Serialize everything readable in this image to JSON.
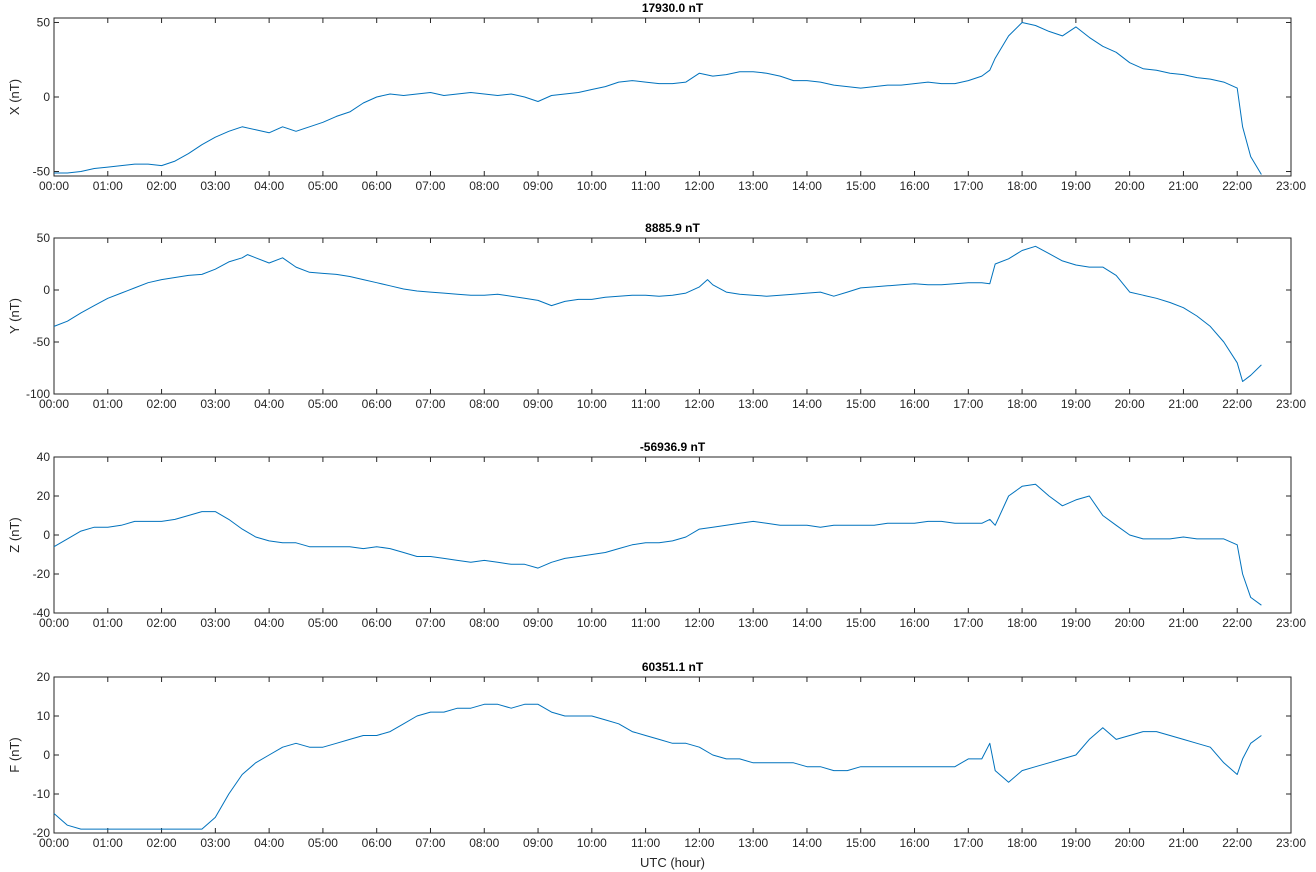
{
  "colors": {
    "series": "#0072bd",
    "axes": "#262626",
    "background": "#ffffff"
  },
  "shared_x": {
    "label": "UTC (hour)",
    "range": [
      0,
      23
    ],
    "tick_labels": [
      "00:00",
      "01:00",
      "02:00",
      "03:00",
      "04:00",
      "05:00",
      "06:00",
      "07:00",
      "08:00",
      "09:00",
      "10:00",
      "11:00",
      "12:00",
      "13:00",
      "14:00",
      "15:00",
      "16:00",
      "17:00",
      "18:00",
      "19:00",
      "20:00",
      "21:00",
      "22:00",
      "23:00"
    ]
  },
  "chart_data": [
    {
      "type": "line",
      "title": "17930.0 nT",
      "ylabel": "X (nT)",
      "xlabel": "",
      "xlim": [
        0,
        23
      ],
      "ylim": [
        -53,
        53
      ],
      "yticks": [
        -50,
        0,
        50
      ],
      "grid": false,
      "series": [
        {
          "x": [
            0,
            0.25,
            0.5,
            0.75,
            1,
            1.25,
            1.5,
            1.75,
            2,
            2.25,
            2.5,
            2.75,
            3,
            3.25,
            3.5,
            3.75,
            4,
            4.25,
            4.5,
            4.75,
            5,
            5.25,
            5.5,
            5.75,
            6,
            6.25,
            6.5,
            6.75,
            7,
            7.25,
            7.5,
            7.75,
            8,
            8.25,
            8.5,
            8.75,
            9,
            9.25,
            9.5,
            9.75,
            10,
            10.25,
            10.5,
            10.75,
            11,
            11.25,
            11.5,
            11.75,
            12,
            12.25,
            12.5,
            12.75,
            13,
            13.25,
            13.5,
            13.75,
            14,
            14.25,
            14.5,
            14.75,
            15,
            15.25,
            15.5,
            15.75,
            16,
            16.25,
            16.5,
            16.75,
            17,
            17.25,
            17.4,
            17.5,
            17.75,
            18,
            18.25,
            18.5,
            18.75,
            19,
            19.25,
            19.5,
            19.75,
            20,
            20.25,
            20.5,
            20.75,
            21,
            21.25,
            21.5,
            21.75,
            22,
            22.1,
            22.25,
            22.45
          ],
          "y": [
            -51,
            -51,
            -50,
            -48,
            -47,
            -46,
            -45,
            -45,
            -46,
            -43,
            -38,
            -32,
            -27,
            -23,
            -20,
            -22,
            -24,
            -20,
            -23,
            -20,
            -17,
            -13,
            -10,
            -4,
            0,
            2,
            1,
            2,
            3,
            1,
            2,
            3,
            2,
            1,
            2,
            0,
            -3,
            1,
            2,
            3,
            5,
            7,
            10,
            11,
            10,
            9,
            9,
            10,
            16,
            14,
            15,
            17,
            17,
            16,
            14,
            11,
            11,
            10,
            8,
            7,
            6,
            7,
            8,
            8,
            9,
            10,
            9,
            9,
            11,
            14,
            18,
            26,
            41,
            50,
            48,
            44,
            41,
            47,
            40,
            34,
            30,
            23,
            19,
            18,
            16,
            15,
            13,
            12,
            10,
            6,
            -20,
            -40,
            -52
          ]
        }
      ]
    },
    {
      "type": "line",
      "title": "8885.9 nT",
      "ylabel": "Y (nT)",
      "xlabel": "",
      "xlim": [
        0,
        23
      ],
      "ylim": [
        -100,
        50
      ],
      "yticks": [
        -100,
        -50,
        0,
        50
      ],
      "grid": false,
      "series": [
        {
          "x": [
            0,
            0.25,
            0.5,
            0.75,
            1,
            1.25,
            1.5,
            1.75,
            2,
            2.25,
            2.5,
            2.75,
            3,
            3.25,
            3.5,
            3.6,
            3.75,
            4,
            4.25,
            4.5,
            4.75,
            5,
            5.25,
            5.5,
            5.75,
            6,
            6.25,
            6.5,
            6.75,
            7,
            7.25,
            7.5,
            7.75,
            8,
            8.25,
            8.5,
            8.75,
            9,
            9.25,
            9.5,
            9.75,
            10,
            10.25,
            10.5,
            10.75,
            11,
            11.25,
            11.5,
            11.75,
            12,
            12.15,
            12.25,
            12.5,
            12.75,
            13,
            13.25,
            13.5,
            13.75,
            14,
            14.25,
            14.5,
            14.75,
            15,
            15.25,
            15.5,
            15.75,
            16,
            16.25,
            16.5,
            16.75,
            17,
            17.25,
            17.4,
            17.5,
            17.75,
            18,
            18.25,
            18.5,
            18.75,
            19,
            19.25,
            19.5,
            19.75,
            20,
            20.25,
            20.5,
            20.75,
            21,
            21.25,
            21.5,
            21.75,
            22,
            22.1,
            22.25,
            22.45
          ],
          "y": [
            -35,
            -30,
            -22,
            -15,
            -8,
            -3,
            2,
            7,
            10,
            12,
            14,
            15,
            20,
            27,
            31,
            34,
            31,
            26,
            31,
            22,
            17,
            16,
            15,
            13,
            10,
            7,
            4,
            1,
            -1,
            -2,
            -3,
            -4,
            -5,
            -5,
            -4,
            -6,
            -8,
            -10,
            -15,
            -11,
            -9,
            -9,
            -7,
            -6,
            -5,
            -5,
            -6,
            -5,
            -3,
            3,
            10,
            5,
            -2,
            -4,
            -5,
            -6,
            -5,
            -4,
            -3,
            -2,
            -6,
            -2,
            2,
            3,
            4,
            5,
            6,
            5,
            5,
            6,
            7,
            7,
            6,
            25,
            30,
            38,
            42,
            35,
            28,
            24,
            22,
            22,
            14,
            -2,
            -5,
            -8,
            -12,
            -17,
            -25,
            -35,
            -50,
            -70,
            -88,
            -82,
            -72
          ]
        }
      ]
    },
    {
      "type": "line",
      "title": "-56936.9 nT",
      "ylabel": "Z (nT)",
      "xlabel": "",
      "xlim": [
        0,
        23
      ],
      "ylim": [
        -40,
        40
      ],
      "yticks": [
        -40,
        -20,
        0,
        20,
        40
      ],
      "grid": false,
      "series": [
        {
          "x": [
            0,
            0.25,
            0.5,
            0.75,
            1,
            1.25,
            1.5,
            1.75,
            2,
            2.25,
            2.5,
            2.75,
            3,
            3.25,
            3.5,
            3.75,
            4,
            4.25,
            4.5,
            4.75,
            5,
            5.25,
            5.5,
            5.75,
            6,
            6.25,
            6.5,
            6.75,
            7,
            7.25,
            7.5,
            7.75,
            8,
            8.25,
            8.5,
            8.75,
            9,
            9.25,
            9.5,
            9.75,
            10,
            10.25,
            10.5,
            10.75,
            11,
            11.25,
            11.5,
            11.75,
            12,
            12.25,
            12.5,
            12.75,
            13,
            13.25,
            13.5,
            13.75,
            14,
            14.25,
            14.5,
            14.75,
            15,
            15.25,
            15.5,
            15.75,
            16,
            16.25,
            16.5,
            16.75,
            17,
            17.25,
            17.4,
            17.5,
            17.75,
            18,
            18.25,
            18.5,
            18.75,
            19,
            19.25,
            19.5,
            19.75,
            20,
            20.25,
            20.5,
            20.75,
            21,
            21.25,
            21.5,
            21.75,
            22,
            22.1,
            22.25,
            22.45
          ],
          "y": [
            -6,
            -2,
            2,
            4,
            4,
            5,
            7,
            7,
            7,
            8,
            10,
            12,
            12,
            8,
            3,
            -1,
            -3,
            -4,
            -4,
            -6,
            -6,
            -6,
            -6,
            -7,
            -6,
            -7,
            -9,
            -11,
            -11,
            -12,
            -13,
            -14,
            -13,
            -14,
            -15,
            -15,
            -17,
            -14,
            -12,
            -11,
            -10,
            -9,
            -7,
            -5,
            -4,
            -4,
            -3,
            -1,
            3,
            4,
            5,
            6,
            7,
            6,
            5,
            5,
            5,
            4,
            5,
            5,
            5,
            5,
            6,
            6,
            6,
            7,
            7,
            6,
            6,
            6,
            8,
            5,
            20,
            25,
            26,
            20,
            15,
            18,
            20,
            10,
            5,
            0,
            -2,
            -2,
            -2,
            -1,
            -2,
            -2,
            -2,
            -5,
            -20,
            -32,
            -36
          ]
        }
      ]
    },
    {
      "type": "line",
      "title": "60351.1 nT",
      "ylabel": "F (nT)",
      "xlabel": "UTC (hour)",
      "xlim": [
        0,
        23
      ],
      "ylim": [
        -20,
        20
      ],
      "yticks": [
        -20,
        -10,
        0,
        10,
        20
      ],
      "grid": false,
      "series": [
        {
          "x": [
            0,
            0.25,
            0.5,
            0.75,
            1,
            1.25,
            1.5,
            1.75,
            2,
            2.25,
            2.5,
            2.75,
            3,
            3.25,
            3.5,
            3.75,
            4,
            4.25,
            4.5,
            4.75,
            5,
            5.25,
            5.5,
            5.75,
            6,
            6.25,
            6.5,
            6.75,
            7,
            7.25,
            7.5,
            7.75,
            8,
            8.25,
            8.5,
            8.75,
            9,
            9.25,
            9.5,
            9.75,
            10,
            10.25,
            10.5,
            10.75,
            11,
            11.25,
            11.5,
            11.75,
            12,
            12.25,
            12.5,
            12.75,
            13,
            13.25,
            13.5,
            13.75,
            14,
            14.25,
            14.5,
            14.75,
            15,
            15.25,
            15.5,
            15.75,
            16,
            16.25,
            16.5,
            16.75,
            17,
            17.25,
            17.4,
            17.5,
            17.75,
            18,
            18.25,
            18.5,
            18.75,
            19,
            19.25,
            19.5,
            19.75,
            20,
            20.25,
            20.5,
            20.75,
            21,
            21.25,
            21.5,
            21.75,
            22,
            22.1,
            22.25,
            22.45
          ],
          "y": [
            -15,
            -18,
            -19,
            -19,
            -19,
            -19,
            -19,
            -19,
            -19,
            -19,
            -19,
            -19,
            -16,
            -10,
            -5,
            -2,
            0,
            2,
            3,
            2,
            2,
            3,
            4,
            5,
            5,
            6,
            8,
            10,
            11,
            11,
            12,
            12,
            13,
            13,
            12,
            13,
            13,
            11,
            10,
            10,
            10,
            9,
            8,
            6,
            5,
            4,
            3,
            3,
            2,
            0,
            -1,
            -1,
            -2,
            -2,
            -2,
            -2,
            -3,
            -3,
            -4,
            -4,
            -3,
            -3,
            -3,
            -3,
            -3,
            -3,
            -3,
            -3,
            -1,
            -1,
            3,
            -4,
            -7,
            -4,
            -3,
            -2,
            -1,
            0,
            4,
            7,
            4,
            5,
            6,
            6,
            5,
            4,
            3,
            2,
            -2,
            -5,
            -1,
            3,
            5
          ]
        }
      ]
    }
  ]
}
